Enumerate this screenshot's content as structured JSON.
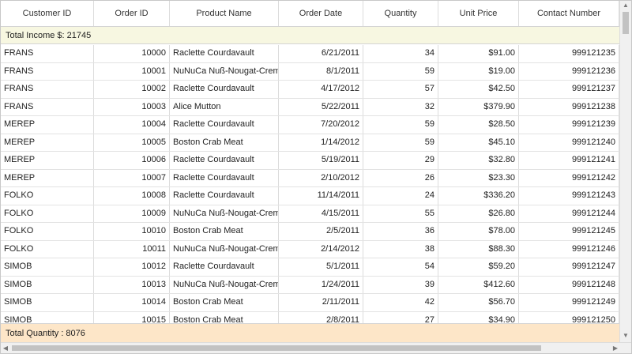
{
  "columns": [
    {
      "key": "customer",
      "label": "Customer ID",
      "width": 118,
      "align": "left"
    },
    {
      "key": "order",
      "label": "Order ID",
      "width": 96,
      "align": "right"
    },
    {
      "key": "product",
      "label": "Product Name",
      "width": 138,
      "align": "left"
    },
    {
      "key": "date",
      "label": "Order Date",
      "width": 107,
      "align": "right"
    },
    {
      "key": "qty",
      "label": "Quantity",
      "width": 95,
      "align": "right"
    },
    {
      "key": "price",
      "label": "Unit Price",
      "width": 102,
      "align": "right"
    },
    {
      "key": "contact",
      "label": "Contact Number",
      "width": 127,
      "align": "right"
    }
  ],
  "summary_top": {
    "label": "Total Income $: 21745"
  },
  "summary_bottom": {
    "label": "Total Quantity : 8076"
  },
  "rows": [
    {
      "customer": "FRANS",
      "order": "10000",
      "product": "Raclette Courdavault",
      "date": "6/21/2011",
      "qty": "34",
      "price": "$91.00",
      "contact": "999121235"
    },
    {
      "customer": "FRANS",
      "order": "10001",
      "product": "NuNuCa Nuß-Nougat-Creme",
      "date": "8/1/2011",
      "qty": "59",
      "price": "$19.00",
      "contact": "999121236"
    },
    {
      "customer": "FRANS",
      "order": "10002",
      "product": "Raclette Courdavault",
      "date": "4/17/2012",
      "qty": "57",
      "price": "$42.50",
      "contact": "999121237"
    },
    {
      "customer": "FRANS",
      "order": "10003",
      "product": "Alice Mutton",
      "date": "5/22/2011",
      "qty": "32",
      "price": "$379.90",
      "contact": "999121238"
    },
    {
      "customer": "MEREP",
      "order": "10004",
      "product": "Raclette Courdavault",
      "date": "7/20/2012",
      "qty": "59",
      "price": "$28.50",
      "contact": "999121239"
    },
    {
      "customer": "MEREP",
      "order": "10005",
      "product": "Boston Crab Meat",
      "date": "1/14/2012",
      "qty": "59",
      "price": "$45.10",
      "contact": "999121240"
    },
    {
      "customer": "MEREP",
      "order": "10006",
      "product": "Raclette Courdavault",
      "date": "5/19/2011",
      "qty": "29",
      "price": "$32.80",
      "contact": "999121241"
    },
    {
      "customer": "MEREP",
      "order": "10007",
      "product": "Raclette Courdavault",
      "date": "2/10/2012",
      "qty": "26",
      "price": "$23.30",
      "contact": "999121242"
    },
    {
      "customer": "FOLKO",
      "order": "10008",
      "product": "Raclette Courdavault",
      "date": "11/14/2011",
      "qty": "24",
      "price": "$336.20",
      "contact": "999121243"
    },
    {
      "customer": "FOLKO",
      "order": "10009",
      "product": "NuNuCa Nuß-Nougat-Creme",
      "date": "4/15/2011",
      "qty": "55",
      "price": "$26.80",
      "contact": "999121244"
    },
    {
      "customer": "FOLKO",
      "order": "10010",
      "product": "Boston Crab Meat",
      "date": "2/5/2011",
      "qty": "36",
      "price": "$78.00",
      "contact": "999121245"
    },
    {
      "customer": "FOLKO",
      "order": "10011",
      "product": "NuNuCa Nuß-Nougat-Creme",
      "date": "2/14/2012",
      "qty": "38",
      "price": "$88.30",
      "contact": "999121246"
    },
    {
      "customer": "SIMOB",
      "order": "10012",
      "product": "Raclette Courdavault",
      "date": "5/1/2011",
      "qty": "54",
      "price": "$59.20",
      "contact": "999121247"
    },
    {
      "customer": "SIMOB",
      "order": "10013",
      "product": "NuNuCa Nuß-Nougat-Creme",
      "date": "1/24/2011",
      "qty": "39",
      "price": "$412.60",
      "contact": "999121248"
    },
    {
      "customer": "SIMOB",
      "order": "10014",
      "product": "Boston Crab Meat",
      "date": "2/11/2011",
      "qty": "42",
      "price": "$56.70",
      "contact": "999121249"
    },
    {
      "customer": "SIMOB",
      "order": "10015",
      "product": "Boston Crab Meat",
      "date": "2/8/2011",
      "qty": "27",
      "price": "$34.90",
      "contact": "999121250"
    }
  ],
  "scrollbar": {
    "up_icon": "chevron-up-icon",
    "down_icon": "chevron-down-icon",
    "left_icon": "chevron-left-icon",
    "right_icon": "chevron-right-icon"
  }
}
